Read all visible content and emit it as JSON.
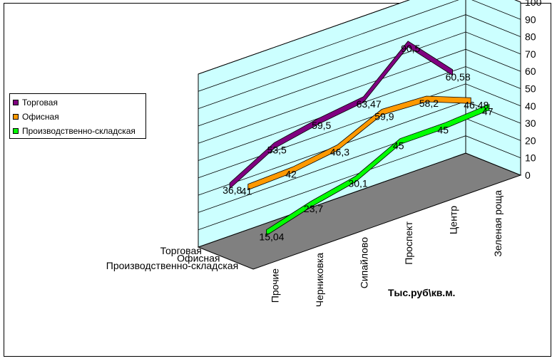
{
  "chart_data": {
    "type": "line",
    "three_d": true,
    "xlabel": "Тыс.руб\\кв.м.",
    "categories": [
      "Прочие",
      "Черниковка",
      "Сипайлово",
      "Проспект",
      "Центр",
      "Зеленая роща"
    ],
    "ylim": [
      0,
      100
    ],
    "yticks": [
      "0",
      "10",
      "20",
      "30",
      "40",
      "50",
      "60",
      "70",
      "80",
      "90",
      "100"
    ],
    "grid": true,
    "legend_position": "left",
    "series": [
      {
        "name": "Торговая",
        "color": "#800080",
        "values": [
          36.8,
          53.5,
          59.5,
          63.47,
          90.5,
          60.58
        ],
        "labels": [
          "36,8",
          "53,5",
          "59,5",
          "63,47",
          "90,5",
          "60,58"
        ]
      },
      {
        "name": "Офисная",
        "color": "#ff9900",
        "values": [
          41,
          42,
          46.3,
          59.9,
          58.2,
          46.48
        ],
        "labels": [
          "41",
          "42",
          "46,3",
          "59,9",
          "58,2",
          "46,48"
        ]
      },
      {
        "name": "Производственно-складская",
        "color": "#00ff00",
        "values": [
          15.04,
          23.7,
          30.1,
          45,
          45,
          47
        ],
        "labels": [
          "15,04",
          "23,7",
          "30,1",
          "45",
          "45",
          "47"
        ]
      }
    ],
    "colors": {
      "walls": "#ccffff",
      "floor": "#808080"
    }
  }
}
